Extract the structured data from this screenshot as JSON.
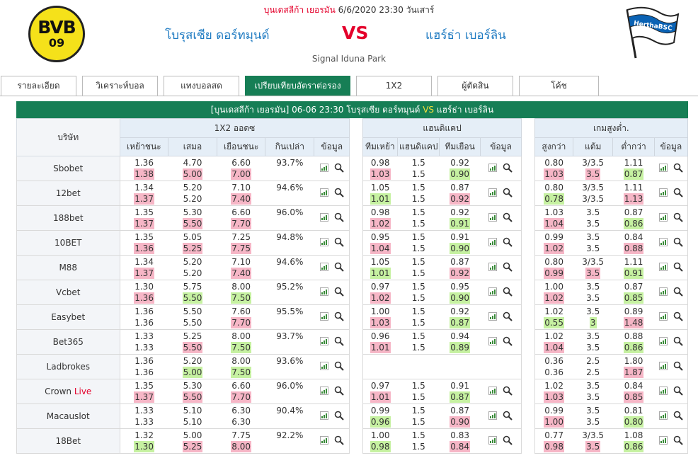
{
  "header": {
    "league": "บุนเดสลีก้า เยอรมัน",
    "datetime": "6/6/2020 23:30 วันเสาร์",
    "home_team": "โบรุสเซีย ดอร์ทมุนด์",
    "away_team": "แฮร์ธ่า เบอร์ลิน",
    "vs": "VS",
    "venue": "Signal Iduna Park",
    "home_logo": {
      "line1": "BVB",
      "line2": "09"
    },
    "away_logo": {
      "text": "HerthaBSC"
    }
  },
  "tabs": [
    {
      "label": "รายละเอียด",
      "active": false
    },
    {
      "label": "วิเคราะห์บอล",
      "active": false
    },
    {
      "label": "แทงบอลสด",
      "active": false
    },
    {
      "label": "เปรียบเทียบอัตราต่อรอง",
      "active": true
    },
    {
      "label": "1X2",
      "active": false
    },
    {
      "label": "ผู้ตัดสิน",
      "active": false
    },
    {
      "label": "โค้ช",
      "active": false
    }
  ],
  "title": {
    "prefix": "[บุนเดสลีก้า เยอรมัน]",
    "time": "06-06 23:30",
    "home": "โบรุสเซีย ดอร์ทมุนด์",
    "vs": "VS",
    "away": "แฮร์ธ่า เบอร์ลิน"
  },
  "table": {
    "company_header": "บริษัท",
    "group_1x2": "1X2 ออดซ",
    "group_handicap": "แฮนดิแคป",
    "group_ou": "เกมสูงต่ำ.",
    "sub_1x2": [
      "เหย้าชนะ",
      "เสมอ",
      "เยือนชนะ",
      "กินเปล่า",
      "ข้อมูล"
    ],
    "sub_handicap": [
      "ทีมเหย้า",
      "แฮนดิแคป",
      "ทีมเยือน",
      "ข้อมูล"
    ],
    "sub_ou": [
      "สูงกว่า",
      "แต้ม",
      "ต่ำกว่า",
      "ข้อมูล"
    ]
  },
  "rows": [
    {
      "company": "Sbobet",
      "live": "",
      "x12": [
        [
          "1.36",
          "1.38",
          "up"
        ],
        [
          "4.70",
          "5.00",
          "up"
        ],
        [
          "6.60",
          "7.00",
          "up"
        ],
        [
          "93.7%",
          "",
          ""
        ]
      ],
      "hdp": [
        [
          "0.98",
          "1.03",
          "up"
        ],
        [
          "1.5",
          "1.5",
          ""
        ],
        [
          "0.92",
          "0.90",
          "dn"
        ]
      ],
      "ou": [
        [
          "0.80",
          "1.03",
          "up"
        ],
        [
          "3/3.5",
          "3.5",
          "up"
        ],
        [
          "1.11",
          "0.87",
          "dn"
        ]
      ]
    },
    {
      "company": "12bet",
      "live": "",
      "x12": [
        [
          "1.34",
          "1.37",
          "up"
        ],
        [
          "5.20",
          "5.20",
          ""
        ],
        [
          "7.10",
          "7.40",
          "up"
        ],
        [
          "94.6%",
          "",
          ""
        ]
      ],
      "hdp": [
        [
          "1.05",
          "1.01",
          "dn"
        ],
        [
          "1.5",
          "1.5",
          ""
        ],
        [
          "0.87",
          "0.92",
          "up"
        ]
      ],
      "ou": [
        [
          "0.80",
          "0.78",
          "dn"
        ],
        [
          "3/3.5",
          "3/3.5",
          ""
        ],
        [
          "1.11",
          "1.13",
          "up"
        ]
      ]
    },
    {
      "company": "188bet",
      "live": "",
      "x12": [
        [
          "1.35",
          "1.37",
          "up"
        ],
        [
          "5.30",
          "5.50",
          "up"
        ],
        [
          "6.60",
          "7.70",
          "up"
        ],
        [
          "96.0%",
          "",
          ""
        ]
      ],
      "hdp": [
        [
          "0.98",
          "1.02",
          "up"
        ],
        [
          "1.5",
          "1.5",
          ""
        ],
        [
          "0.92",
          "0.91",
          "dn"
        ]
      ],
      "ou": [
        [
          "1.03",
          "1.04",
          "up"
        ],
        [
          "3.5",
          "3.5",
          ""
        ],
        [
          "0.87",
          "0.86",
          "dn"
        ]
      ]
    },
    {
      "company": "10BET",
      "live": "",
      "x12": [
        [
          "1.35",
          "1.36",
          "up"
        ],
        [
          "5.05",
          "5.25",
          "up"
        ],
        [
          "7.25",
          "7.75",
          "up"
        ],
        [
          "94.8%",
          "",
          ""
        ]
      ],
      "hdp": [
        [
          "0.95",
          "1.04",
          "up"
        ],
        [
          "1.5",
          "1.5",
          ""
        ],
        [
          "0.91",
          "0.90",
          "dn"
        ]
      ],
      "ou": [
        [
          "0.99",
          "1.02",
          "up"
        ],
        [
          "3.5",
          "3.5",
          ""
        ],
        [
          "0.84",
          "0.88",
          "up"
        ]
      ]
    },
    {
      "company": "M88",
      "live": "",
      "x12": [
        [
          "1.34",
          "1.37",
          "up"
        ],
        [
          "5.20",
          "5.20",
          ""
        ],
        [
          "7.10",
          "7.40",
          "up"
        ],
        [
          "94.6%",
          "",
          ""
        ]
      ],
      "hdp": [
        [
          "1.05",
          "1.01",
          "dn"
        ],
        [
          "1.5",
          "1.5",
          ""
        ],
        [
          "0.87",
          "0.92",
          "up"
        ]
      ],
      "ou": [
        [
          "0.80",
          "0.99",
          "up"
        ],
        [
          "3/3.5",
          "3.5",
          "up"
        ],
        [
          "1.11",
          "0.91",
          "dn"
        ]
      ]
    },
    {
      "company": "Vcbet",
      "live": "",
      "x12": [
        [
          "1.30",
          "1.36",
          "up"
        ],
        [
          "5.75",
          "5.50",
          "dn"
        ],
        [
          "8.00",
          "7.50",
          "dn"
        ],
        [
          "95.2%",
          "",
          ""
        ]
      ],
      "hdp": [
        [
          "0.97",
          "1.02",
          "up"
        ],
        [
          "1.5",
          "1.5",
          ""
        ],
        [
          "0.95",
          "0.90",
          "dn"
        ]
      ],
      "ou": [
        [
          "1.00",
          "1.02",
          "up"
        ],
        [
          "3.5",
          "3.5",
          ""
        ],
        [
          "0.87",
          "0.85",
          "dn"
        ]
      ]
    },
    {
      "company": "Easybet",
      "live": "",
      "x12": [
        [
          "1.36",
          "1.36",
          ""
        ],
        [
          "5.50",
          "5.50",
          ""
        ],
        [
          "7.60",
          "7.70",
          "up"
        ],
        [
          "95.5%",
          "",
          ""
        ]
      ],
      "hdp": [
        [
          "1.00",
          "1.03",
          "up"
        ],
        [
          "1.5",
          "1.5",
          ""
        ],
        [
          "0.92",
          "0.87",
          "dn"
        ]
      ],
      "ou": [
        [
          "1.02",
          "0.55",
          "dn"
        ],
        [
          "3.5",
          "3",
          "dn"
        ],
        [
          "0.89",
          "1.48",
          "up"
        ]
      ]
    },
    {
      "company": "Bet365",
      "live": "",
      "x12": [
        [
          "1.33",
          "1.33",
          ""
        ],
        [
          "5.25",
          "5.50",
          "up"
        ],
        [
          "8.00",
          "7.50",
          "dn"
        ],
        [
          "93.7%",
          "",
          ""
        ]
      ],
      "hdp": [
        [
          "0.96",
          "1.01",
          "up"
        ],
        [
          "1.5",
          "1.5",
          ""
        ],
        [
          "0.94",
          "0.89",
          "dn"
        ]
      ],
      "ou": [
        [
          "1.02",
          "1.04",
          "up"
        ],
        [
          "3.5",
          "3.5",
          ""
        ],
        [
          "0.88",
          "0.86",
          "dn"
        ]
      ]
    },
    {
      "company": "Ladbrokes",
      "live": "",
      "x12": [
        [
          "1.36",
          "1.36",
          ""
        ],
        [
          "5.20",
          "5.00",
          "dn"
        ],
        [
          "8.00",
          "7.50",
          "dn"
        ],
        [
          "93.6%",
          "",
          ""
        ]
      ],
      "hdp": [
        [
          "",
          "",
          ""
        ],
        [
          "",
          "",
          ""
        ],
        [
          "",
          "",
          ""
        ]
      ],
      "ou": [
        [
          "0.36",
          "0.36",
          ""
        ],
        [
          "2.5",
          "2.5",
          ""
        ],
        [
          "1.80",
          "1.87",
          "up"
        ]
      ]
    },
    {
      "company": "Crown",
      "live": "Live",
      "x12": [
        [
          "1.35",
          "1.37",
          "up"
        ],
        [
          "5.30",
          "5.50",
          "up"
        ],
        [
          "6.60",
          "7.70",
          "up"
        ],
        [
          "96.0%",
          "",
          ""
        ]
      ],
      "hdp": [
        [
          "0.97",
          "1.01",
          "up"
        ],
        [
          "1.5",
          "1.5",
          ""
        ],
        [
          "0.91",
          "0.87",
          "dn"
        ]
      ],
      "ou": [
        [
          "1.02",
          "1.03",
          "up"
        ],
        [
          "3.5",
          "3.5",
          ""
        ],
        [
          "0.84",
          "0.85",
          "up"
        ]
      ]
    },
    {
      "company": "Macauslot",
      "live": "",
      "x12": [
        [
          "1.33",
          "1.33",
          ""
        ],
        [
          "5.10",
          "5.10",
          ""
        ],
        [
          "6.30",
          "6.30",
          ""
        ],
        [
          "90.4%",
          "",
          ""
        ]
      ],
      "hdp": [
        [
          "0.99",
          "0.96",
          "dn"
        ],
        [
          "1.5",
          "1.5",
          ""
        ],
        [
          "0.87",
          "0.90",
          "up"
        ]
      ],
      "ou": [
        [
          "0.99",
          "1.00",
          "up"
        ],
        [
          "3.5",
          "3.5",
          ""
        ],
        [
          "0.81",
          "0.80",
          "dn"
        ]
      ]
    },
    {
      "company": "18Bet",
      "live": "",
      "x12": [
        [
          "1.32",
          "1.30",
          "dn"
        ],
        [
          "5.00",
          "5.25",
          "up"
        ],
        [
          "7.75",
          "8.00",
          "up"
        ],
        [
          "92.2%",
          "",
          ""
        ]
      ],
      "hdp": [
        [
          "1.00",
          "0.98",
          "dn"
        ],
        [
          "1.5",
          "1.5",
          ""
        ],
        [
          "0.83",
          "0.84",
          "up"
        ]
      ],
      "ou": [
        [
          "0.77",
          "0.98",
          "up"
        ],
        [
          "3/3.5",
          "3.5",
          "up"
        ],
        [
          "1.08",
          "0.86",
          "dn"
        ]
      ]
    }
  ],
  "colors": {
    "green": "#167e55",
    "red": "#e4002b",
    "blue": "#1f7bc2",
    "up": "#f6b6c6",
    "down": "#c6f1a1"
  },
  "icons": {
    "chart": "bar-chart-icon",
    "search": "magnifier-icon"
  }
}
